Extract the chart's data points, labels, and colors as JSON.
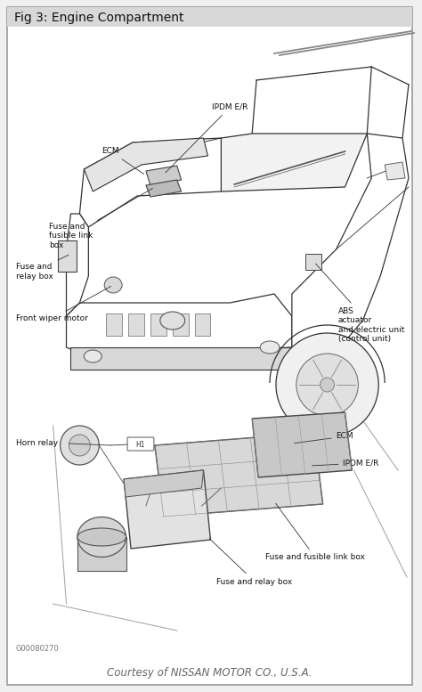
{
  "title": "Fig 3: Engine Compartment",
  "title_bg": "#d8d8d8",
  "page_bg": "#f0f0f0",
  "content_bg": "#ffffff",
  "border_color": "#999999",
  "footer_text": "Courtesy of NISSAN MOTOR CO., U.S.A.",
  "figure_code": "G00080270",
  "line_color": "#333333",
  "text_color": "#111111",
  "label_color": "#222222",
  "font_size": 6.5,
  "title_fontsize": 10
}
